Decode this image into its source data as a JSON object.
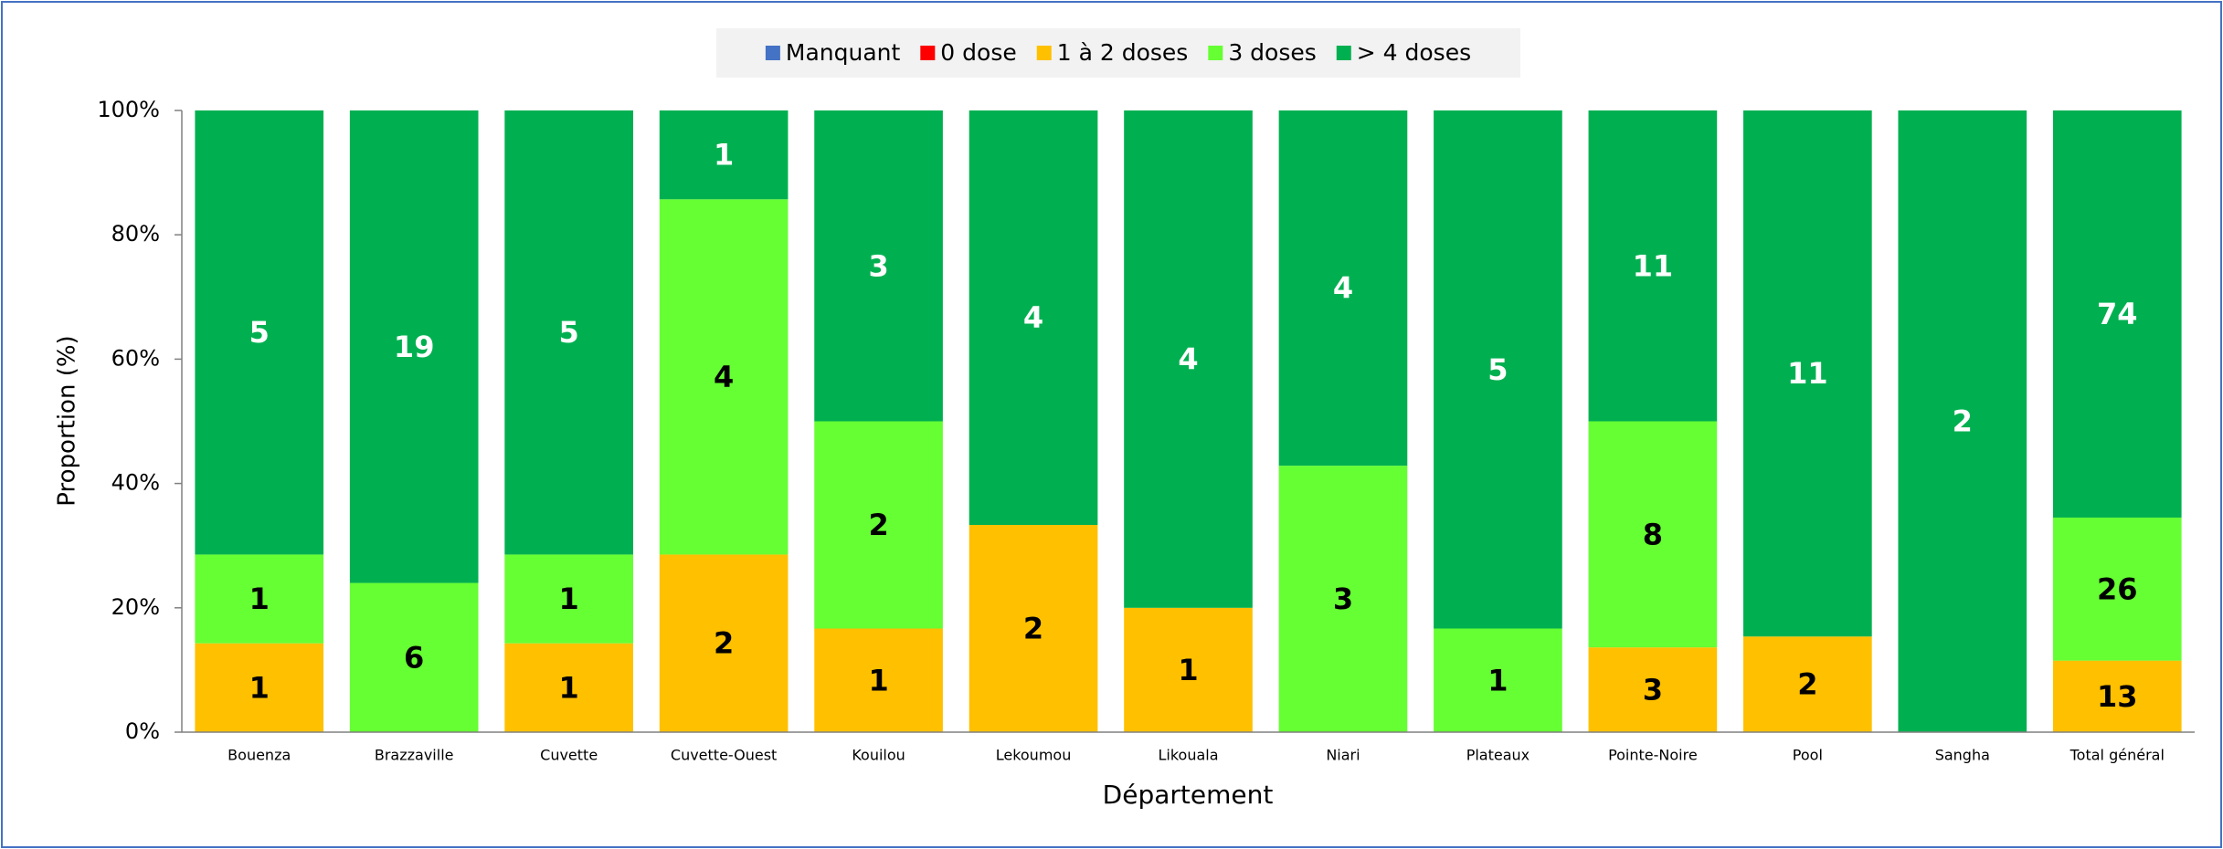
{
  "chart_data": {
    "type": "stacked_percent_bar",
    "x_label": "Département",
    "y_label": "Proportion (%)",
    "categories": [
      "Bouenza",
      "Brazzaville",
      "Cuvette",
      "Cuvette-Ouest",
      "Kouilou",
      "Lekoumou",
      "Likouala",
      "Niari",
      "Plateaux",
      "Pointe-Noire",
      "Pool",
      "Sangha",
      "Total général"
    ],
    "series": [
      {
        "name": "Manquant",
        "color": "#4472c4",
        "label_color": "#000000",
        "values": [
          0,
          0,
          0,
          0,
          0,
          0,
          0,
          0,
          0,
          0,
          0,
          0,
          0
        ]
      },
      {
        "name": "0 dose",
        "color": "#ff0000",
        "label_color": "#000000",
        "values": [
          0,
          0,
          0,
          0,
          0,
          0,
          0,
          0,
          0,
          0,
          0,
          0,
          0
        ]
      },
      {
        "name": "1 à 2 doses",
        "color": "#ffc000",
        "label_color": "#000000",
        "values": [
          1,
          0,
          1,
          2,
          1,
          2,
          1,
          0,
          0,
          3,
          2,
          0,
          13
        ]
      },
      {
        "name": "3 doses",
        "color": "#66ff33",
        "label_color": "#000000",
        "values": [
          1,
          6,
          1,
          4,
          2,
          0,
          0,
          3,
          1,
          8,
          0,
          0,
          26
        ]
      },
      {
        "name": "> 4 doses",
        "color": "#00b050",
        "label_color": "#ffffff",
        "values": [
          5,
          19,
          5,
          1,
          3,
          4,
          4,
          4,
          5,
          11,
          11,
          2,
          74
        ]
      }
    ],
    "ylim": [
      0,
      100
    ],
    "yticks": [
      {
        "value": 0,
        "label": "0%"
      },
      {
        "value": 20,
        "label": "20%"
      },
      {
        "value": 40,
        "label": "40%"
      },
      {
        "value": 60,
        "label": "60%"
      },
      {
        "value": 80,
        "label": "80%"
      },
      {
        "value": 100,
        "label": "100%"
      }
    ],
    "legend": "top",
    "grid": false
  }
}
